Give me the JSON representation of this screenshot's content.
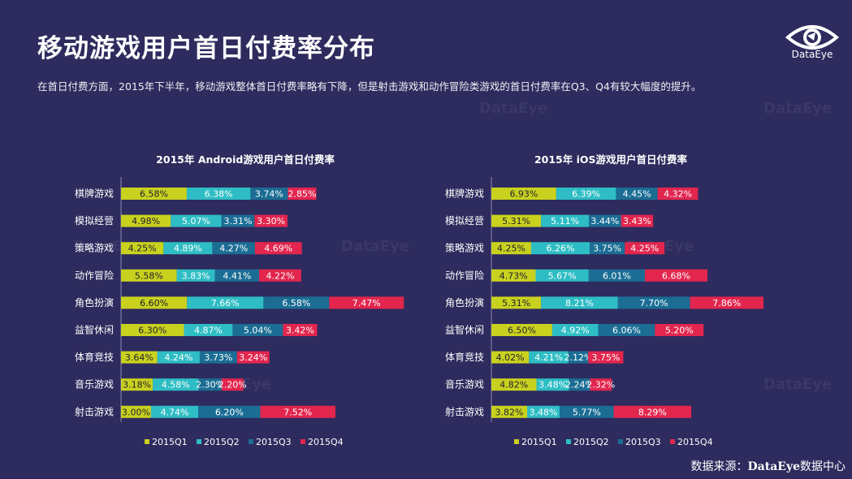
{
  "header": {
    "title": "移动游戏用户首日付费率分布",
    "subtitle": "在首日付费方面，2015年下半年，移动游戏整体首日付费率略有下降，但是射击游戏和动作冒险类游戏的首日付费率在Q3、Q4有较大幅度的提升。"
  },
  "brand": {
    "logo_icon": "dataeye-eye-icon",
    "name": "DataEye"
  },
  "watermark": "DataEye",
  "source": {
    "prefix": "数据来源：",
    "name": "DataEye",
    "suffix": "数据中心"
  },
  "colors": {
    "background": "#2e2b5e",
    "Q1": "#c9d11f",
    "Q2": "#2ebdc4",
    "Q3": "#1b6d94",
    "Q4": "#e2264e"
  },
  "chart_data": [
    {
      "type": "bar",
      "stacked": true,
      "orientation": "horizontal",
      "title": "2015年 Android游戏用户首日付费率",
      "categories": [
        "棋牌游戏",
        "模拟经营",
        "策略游戏",
        "动作冒险",
        "角色扮演",
        "益智休闲",
        "体育竞技",
        "音乐游戏",
        "射击游戏"
      ],
      "series": [
        {
          "name": "2015Q1",
          "values": [
            6.58,
            4.98,
            4.25,
            5.58,
            6.6,
            6.3,
            3.64,
            3.18,
            3.0
          ]
        },
        {
          "name": "2015Q2",
          "values": [
            6.38,
            5.07,
            4.89,
            3.83,
            7.66,
            4.87,
            4.24,
            4.58,
            4.74
          ]
        },
        {
          "name": "2015Q3",
          "values": [
            3.74,
            3.31,
            4.27,
            4.41,
            6.58,
            5.04,
            3.73,
            2.3,
            6.2
          ]
        },
        {
          "name": "2015Q4",
          "values": [
            2.85,
            3.3,
            4.69,
            4.22,
            7.47,
            3.42,
            3.24,
            2.2,
            7.52
          ]
        }
      ],
      "legend_position": "bottom",
      "unit": "%"
    },
    {
      "type": "bar",
      "stacked": true,
      "orientation": "horizontal",
      "title": "2015年 iOS游戏用户首日付费率",
      "categories": [
        "棋牌游戏",
        "模拟经营",
        "策略游戏",
        "动作冒险",
        "角色扮演",
        "益智休闲",
        "体育竞技",
        "音乐游戏",
        "射击游戏"
      ],
      "series": [
        {
          "name": "2015Q1",
          "values": [
            6.93,
            5.31,
            4.25,
            4.73,
            5.31,
            6.5,
            4.02,
            4.82,
            3.82
          ]
        },
        {
          "name": "2015Q2",
          "values": [
            6.39,
            5.11,
            6.26,
            5.67,
            8.21,
            4.92,
            4.21,
            3.48,
            3.48
          ]
        },
        {
          "name": "2015Q3",
          "values": [
            4.45,
            3.44,
            3.75,
            6.01,
            7.7,
            6.06,
            2.12,
            2.24,
            5.77
          ]
        },
        {
          "name": "2015Q4",
          "values": [
            4.32,
            3.43,
            4.25,
            6.68,
            7.86,
            5.2,
            3.75,
            2.32,
            8.29
          ]
        }
      ],
      "legend_position": "bottom",
      "unit": "%"
    }
  ]
}
